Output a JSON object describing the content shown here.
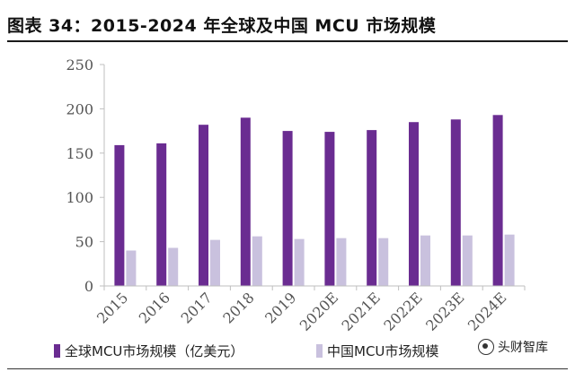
{
  "page": {
    "title": "图表 34：2015-2024 年全球及中国 MCU 市场规模",
    "watermark": "头财智库"
  },
  "colors": {
    "global": "#6a2c91",
    "china": "#c9c1de",
    "axis": "#bfbfbf",
    "tick_text": "#555555"
  },
  "chart_data": {
    "type": "bar",
    "title": "图表 34：2015-2024 年全球及中国 MCU 市场规模",
    "categories": [
      "2015",
      "2016",
      "2017",
      "2018",
      "2019",
      "2020E",
      "2021E",
      "2022E",
      "2023E",
      "2024E"
    ],
    "series": [
      {
        "name": "全球MCU市场规模（亿美元）",
        "values": [
          159,
          161,
          182,
          190,
          175,
          174,
          176,
          185,
          188,
          193
        ]
      },
      {
        "name": "中国MCU市场规模",
        "values": [
          40,
          43,
          52,
          56,
          53,
          54,
          54,
          57,
          57,
          58
        ]
      }
    ],
    "yticks": [
      "0",
      "50",
      "100",
      "150",
      "200",
      "250"
    ],
    "ylim": [
      0,
      250
    ],
    "xlabel": "",
    "ylabel": "",
    "grid": false,
    "legend_position": "bottom"
  }
}
